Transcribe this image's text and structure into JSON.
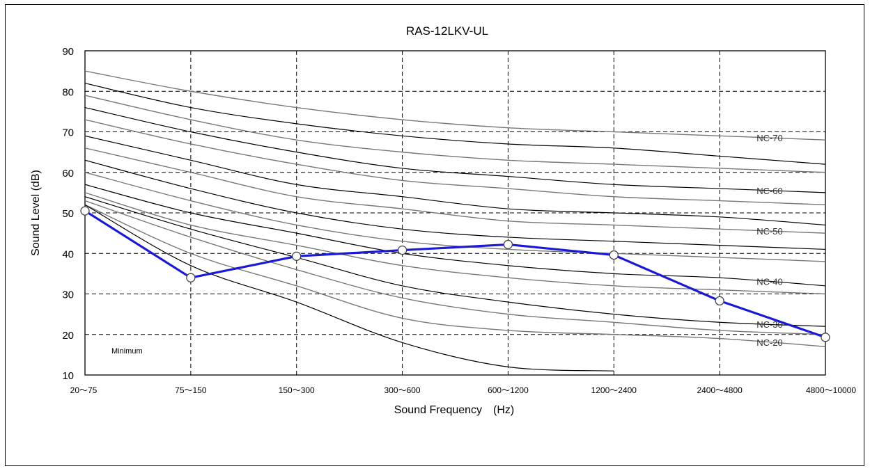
{
  "chart_data": {
    "type": "line",
    "title": "RAS-12LKV-UL",
    "xlabel": "Sound Frequency　(Hz)",
    "ylabel": "Sound Level (dB)",
    "ylim": [
      10,
      90
    ],
    "yticks": [
      "10",
      "20",
      "30",
      "40",
      "50",
      "60",
      "70",
      "80",
      "90"
    ],
    "categories": [
      "20〜75",
      "75〜150",
      "150〜300",
      "300〜600",
      "600〜1200",
      "1200〜2400",
      "2400〜4800",
      "4800〜10000"
    ],
    "grid": true,
    "annotation": "Minimum",
    "series": [
      {
        "values": [
          50.5,
          34,
          39.3,
          40.8,
          42.2,
          39.6,
          28.3,
          19.3
        ],
        "color": "#1a1ad6"
      }
    ],
    "nc_curves": [
      {
        "label": "NC-70",
        "values": [
          85,
          80,
          76,
          73,
          71,
          70,
          69,
          68
        ],
        "labeled": true,
        "color": "gray"
      },
      {
        "label": "",
        "values": [
          82,
          76,
          72,
          69,
          67,
          66,
          64,
          62
        ],
        "labeled": false,
        "color": "black"
      },
      {
        "label": "",
        "values": [
          79,
          73,
          68,
          65,
          63,
          62,
          61,
          60
        ],
        "labeled": false,
        "color": "gray"
      },
      {
        "label": "NC-60",
        "values": [
          76,
          70,
          65,
          61,
          59,
          57,
          56,
          55
        ],
        "labeled": true,
        "color": "black"
      },
      {
        "label": "",
        "values": [
          73,
          67,
          62,
          58,
          56,
          54,
          53,
          52
        ],
        "labeled": false,
        "color": "gray"
      },
      {
        "label": "",
        "values": [
          69,
          63,
          57,
          54,
          51,
          50,
          49,
          47
        ],
        "labeled": false,
        "color": "black"
      },
      {
        "label": "NC-50",
        "values": [
          66,
          60,
          54,
          51,
          48,
          47,
          46,
          45
        ],
        "labeled": true,
        "color": "gray"
      },
      {
        "label": "",
        "values": [
          63,
          56,
          50,
          46,
          44,
          43,
          42,
          41
        ],
        "labeled": false,
        "color": "black"
      },
      {
        "label": "",
        "values": [
          60,
          53,
          47,
          43,
          41,
          40,
          39,
          38
        ],
        "labeled": false,
        "color": "gray"
      },
      {
        "label": "NC-40",
        "values": [
          57,
          50,
          45,
          40,
          37,
          35,
          34,
          32
        ],
        "labeled": true,
        "color": "black"
      },
      {
        "label": "",
        "values": [
          55,
          47,
          42,
          37,
          34,
          32,
          31,
          30
        ],
        "labeled": false,
        "color": "gray"
      },
      {
        "label": "NC-30",
        "values": [
          54,
          46,
          39,
          32,
          28,
          25,
          23,
          22
        ],
        "labeled": true,
        "color": "black"
      },
      {
        "label": "",
        "values": [
          53,
          44,
          36,
          29,
          25,
          23,
          21,
          20
        ],
        "labeled": false,
        "color": "gray"
      },
      {
        "label": "NC-20",
        "values": [
          52,
          40,
          32,
          24,
          21,
          20,
          19,
          17
        ],
        "labeled": true,
        "color": "gray"
      },
      {
        "label": "",
        "values": [
          52,
          37,
          28,
          18,
          12,
          11,
          null,
          null
        ],
        "labeled": false,
        "color": "black"
      }
    ],
    "nc_label_text": [
      "NC-70",
      "NC-60",
      "NC-50",
      "NC-40",
      "NC-30",
      "NC-20"
    ]
  }
}
